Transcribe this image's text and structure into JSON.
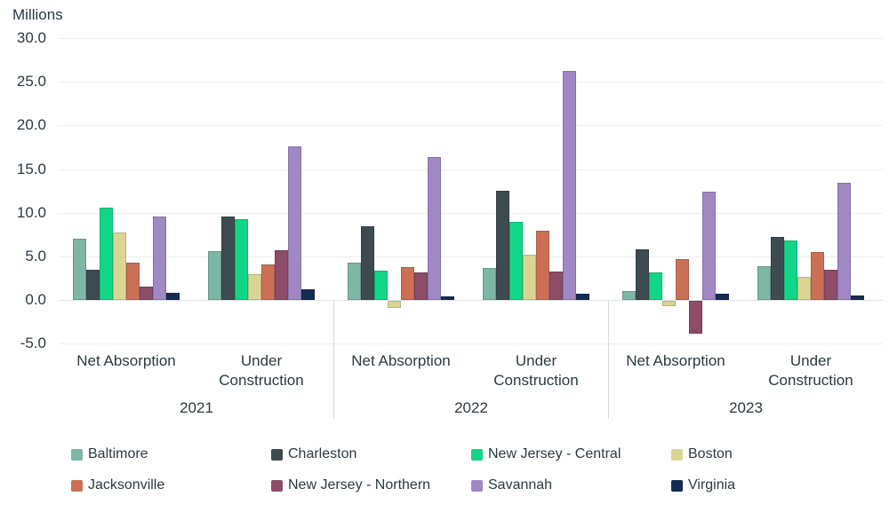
{
  "chart_data": {
    "type": "bar",
    "title": "",
    "ylabel": "Millions",
    "xlabel": "",
    "ylim": [
      -5,
      30
    ],
    "grid": true,
    "legend_position": "bottom",
    "ytick_values": [
      30,
      25,
      20,
      15,
      10,
      5,
      0,
      -5
    ],
    "ytick_labels": [
      "30.0",
      "25.0",
      "20.0",
      "15.0",
      "10.0",
      "5.0",
      "0.0",
      "-5.0"
    ],
    "years": [
      "2021",
      "2022",
      "2023"
    ],
    "categories": [
      "Net Absorption",
      "Under Construction"
    ],
    "values_order": "per series: [2021 Net Absorption, 2021 Under Construction, 2022 Net Absorption, 2022 Under Construction, 2023 Net Absorption, 2023 Under Construction]",
    "series": [
      {
        "name": "Baltimore",
        "color": "#7db6a5",
        "values": [
          7.0,
          5.6,
          4.3,
          3.7,
          1.0,
          3.9
        ]
      },
      {
        "name": "Charleston",
        "color": "#3d4b50",
        "values": [
          3.5,
          9.6,
          8.4,
          12.5,
          5.8,
          7.2
        ]
      },
      {
        "name": "New Jersey - Central",
        "color": "#12d687",
        "values": [
          10.6,
          9.3,
          3.4,
          9.0,
          3.2,
          6.8
        ]
      },
      {
        "name": "Boston",
        "color": "#dbd594",
        "values": [
          7.7,
          2.9,
          -0.8,
          5.2,
          -0.6,
          2.6
        ]
      },
      {
        "name": "Jacksonville",
        "color": "#cc7055",
        "values": [
          4.3,
          4.1,
          3.8,
          7.9,
          4.7,
          5.5
        ]
      },
      {
        "name": "New Jersey - Northern",
        "color": "#8d4c68",
        "values": [
          1.5,
          5.7,
          3.2,
          3.3,
          -3.8,
          3.5
        ]
      },
      {
        "name": "Savannah",
        "color": "#9f88c3",
        "values": [
          9.6,
          17.6,
          16.4,
          26.3,
          12.4,
          13.4
        ]
      },
      {
        "name": "Virginia",
        "color": "#152b52",
        "values": [
          0.8,
          1.2,
          0.4,
          0.7,
          0.7,
          0.5
        ]
      }
    ],
    "colors": {
      "text": "#2b3a41",
      "gridline": "#ededef",
      "zero_line": "#e0e3e4",
      "section_divider": "#d8dadc",
      "background": "#ffffff"
    }
  }
}
